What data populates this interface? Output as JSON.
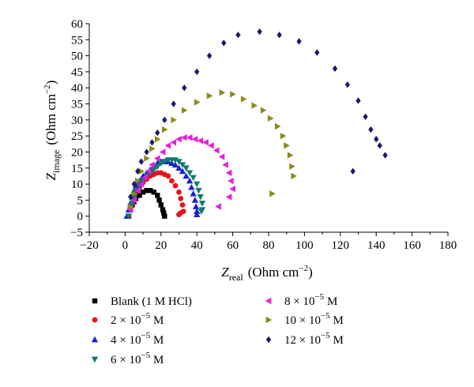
{
  "chart_data": {
    "type": "scatter",
    "xlim": [
      -20,
      180
    ],
    "ylim": [
      -5,
      60
    ],
    "xticks": [
      -20,
      0,
      20,
      40,
      60,
      80,
      100,
      120,
      140,
      160,
      180
    ],
    "yticks": [
      -5,
      0,
      5,
      10,
      15,
      20,
      25,
      30,
      35,
      40,
      45,
      50,
      55,
      60
    ],
    "xlabel": {
      "main": "Z",
      "sub": "real",
      "unit": "(Ohm cm",
      "sup": "−2",
      "close": ")"
    },
    "ylabel": {
      "main": "Z",
      "sub": "image",
      "unit": "(Ohm cm",
      "sup": "−2",
      "close": ")"
    },
    "grid": false,
    "legend_position": "bottom",
    "series": [
      {
        "name": "Blank (1 M HCl)",
        "base": "Blank (1 M HCl)",
        "exp": "",
        "unit": "",
        "marker": "square",
        "color": "#000000",
        "x": [
          2,
          3,
          4,
          5,
          6,
          8,
          10,
          12,
          14,
          16,
          18,
          19,
          20,
          21,
          21.5,
          22
        ],
        "y": [
          0,
          2,
          3.5,
          4.5,
          5.5,
          6.5,
          7.5,
          8,
          8,
          7.5,
          6.5,
          5,
          3.5,
          2,
          1,
          0
        ]
      },
      {
        "name": "2 × 10−5 M",
        "base": "2 × 10",
        "exp": "−5",
        "unit": " M",
        "marker": "circle",
        "color": "#e4141b",
        "x": [
          2,
          3,
          4,
          5,
          6,
          8,
          10,
          12,
          14,
          16,
          18,
          20,
          22,
          24,
          26,
          28,
          30,
          31,
          32,
          32.5,
          31,
          30
        ],
        "y": [
          0,
          2,
          4,
          6,
          7.5,
          9,
          10.5,
          11.5,
          12.5,
          13,
          13.5,
          13.5,
          13,
          12.5,
          11,
          9.5,
          7.5,
          5.5,
          3.5,
          1.5,
          1,
          0.5
        ]
      },
      {
        "name": "4 × 10−5 M",
        "base": "4 × 10",
        "exp": "−5",
        "unit": " M",
        "marker": "triangle-up",
        "color": "#1a23c9",
        "x": [
          1,
          2,
          3,
          4,
          5,
          6,
          8,
          10,
          12,
          14,
          16,
          18,
          20,
          22,
          24,
          26,
          28,
          30,
          32,
          34,
          36,
          37,
          38,
          39,
          39.5,
          40,
          40
        ],
        "y": [
          0,
          2,
          4,
          6,
          8,
          9.5,
          11,
          12.5,
          13.5,
          14.5,
          15.5,
          16.5,
          17,
          17,
          17,
          16.5,
          16,
          15,
          14,
          12.5,
          11,
          9,
          7,
          5,
          3,
          1.5,
          0.5
        ]
      },
      {
        "name": "6 × 10−5 M",
        "base": "6 × 10",
        "exp": "−5",
        "unit": " M",
        "marker": "triangle-down",
        "color": "#0f7a73",
        "x": [
          2,
          3,
          4,
          5,
          6,
          8,
          10,
          12,
          14,
          16,
          18,
          20,
          22,
          24,
          26,
          28,
          30,
          32,
          34,
          36,
          38,
          40,
          41,
          42,
          43,
          43,
          42.5
        ],
        "y": [
          0,
          2,
          4,
          6,
          8,
          9.5,
          11,
          12.5,
          13.5,
          14.5,
          15.5,
          16.5,
          17,
          17.5,
          17.5,
          17.5,
          17,
          16,
          15,
          13.5,
          12,
          10,
          8,
          6,
          4,
          2,
          1.5
        ]
      },
      {
        "name": "8 × 10−5 M",
        "base": "8 × 10",
        "exp": "−5",
        "unit": " M",
        "marker": "triangle-left",
        "color": "#ea1ed8",
        "x": [
          3,
          5,
          7,
          9,
          11,
          13,
          15,
          18,
          21,
          24,
          27,
          30,
          33,
          36,
          39,
          42,
          45,
          48,
          51,
          54,
          56,
          58,
          59,
          60,
          58,
          52
        ],
        "y": [
          2,
          5,
          8,
          10,
          12,
          14,
          16,
          18,
          20,
          22,
          23,
          24,
          24.5,
          24.5,
          24,
          23.5,
          23,
          22,
          20.5,
          18.5,
          16,
          13.5,
          11,
          8.5,
          6,
          3
        ]
      },
      {
        "name": "10 × 10−5 M",
        "base": "10 × 10",
        "exp": "−5",
        "unit": " M",
        "marker": "triangle-right",
        "color": "#8c8a17",
        "x": [
          3,
          5,
          7,
          9,
          12,
          15,
          18,
          22,
          27,
          33,
          40,
          47,
          54,
          60,
          66,
          72,
          77,
          81,
          85,
          88,
          90,
          92,
          93,
          94,
          82
        ],
        "y": [
          3,
          7,
          11,
          14,
          18,
          21,
          24,
          27,
          30,
          33,
          35.5,
          37.5,
          38.5,
          38,
          36.5,
          34.5,
          33,
          30.5,
          28,
          25,
          22,
          19,
          15.5,
          12.5,
          7
        ]
      },
      {
        "name": "12 × 10−5 M",
        "base": "12 × 10",
        "exp": "−5",
        "unit": " M",
        "marker": "diamond",
        "color": "#151a6b",
        "x": [
          3,
          5,
          7,
          9,
          12,
          15,
          18,
          22,
          27,
          33,
          40,
          47,
          55,
          63,
          75,
          86,
          97,
          107,
          117,
          124,
          130,
          134,
          137,
          140,
          142,
          145,
          127
        ],
        "y": [
          6,
          10,
          14,
          17,
          20,
          23,
          26,
          30,
          35,
          40,
          45,
          50,
          54,
          56.5,
          57.5,
          56.5,
          54.5,
          51,
          46,
          41,
          36,
          31,
          27,
          24,
          22,
          19,
          14
        ]
      }
    ]
  }
}
